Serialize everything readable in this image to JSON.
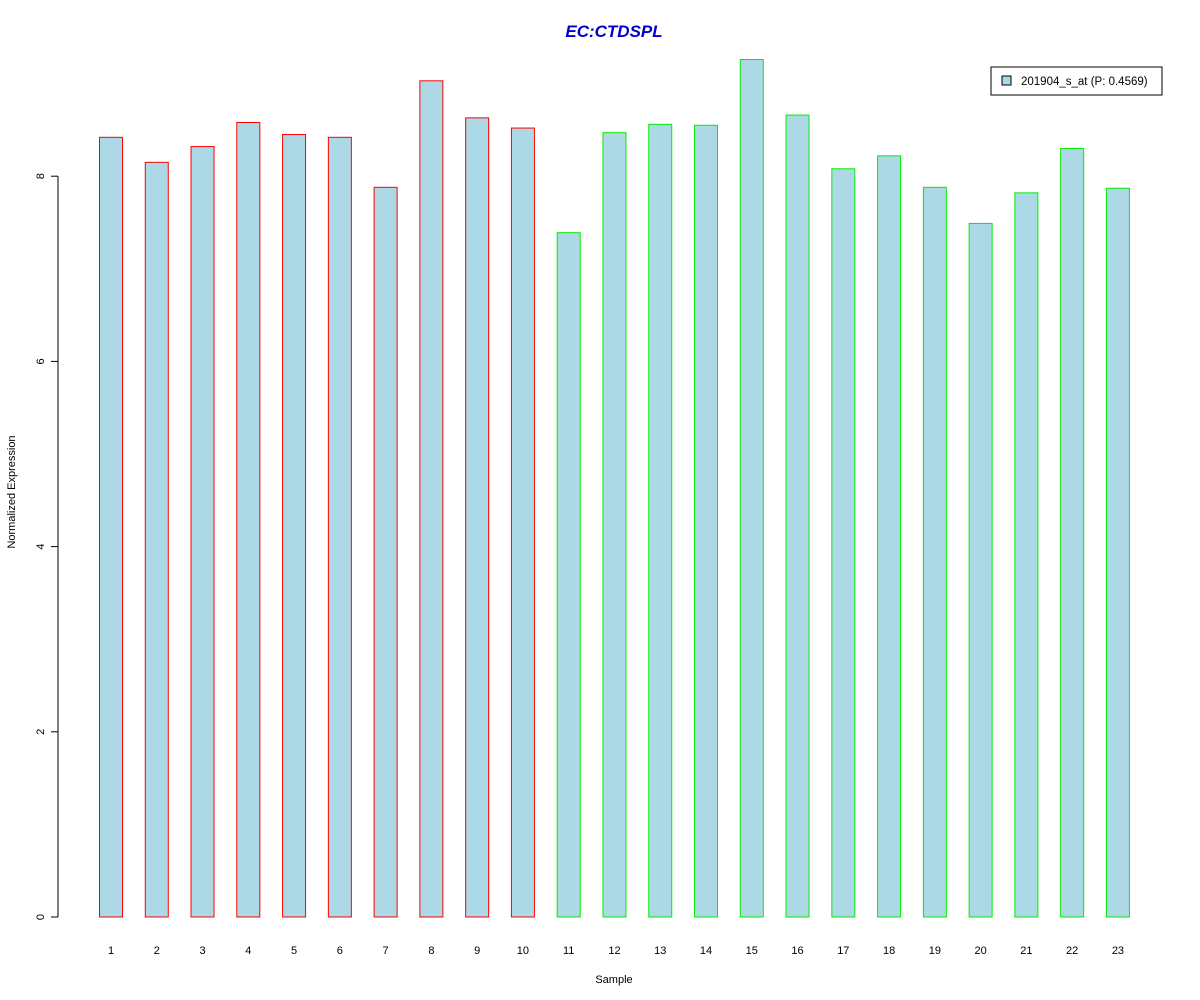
{
  "chart_data": {
    "type": "bar",
    "title": "EC:CTDSPL",
    "xlabel": "Sample",
    "ylabel": "Normalized Expression",
    "categories": [
      "1",
      "2",
      "3",
      "4",
      "5",
      "6",
      "7",
      "8",
      "9",
      "10",
      "11",
      "12",
      "13",
      "14",
      "15",
      "16",
      "17",
      "18",
      "19",
      "20",
      "21",
      "22",
      "23"
    ],
    "series": [
      {
        "name": "201904_s_at (P: 0.4569)",
        "values": [
          8.42,
          8.15,
          8.32,
          8.58,
          8.45,
          8.42,
          7.88,
          9.03,
          8.63,
          8.52,
          7.39,
          8.47,
          8.56,
          8.55,
          9.26,
          8.66,
          8.08,
          8.22,
          7.88,
          7.49,
          7.82,
          8.3,
          7.87
        ]
      }
    ],
    "groups": [
      {
        "samples": [
          1,
          2,
          3,
          4,
          5,
          6,
          7,
          8,
          9,
          10
        ],
        "border_color": "#ff0000"
      },
      {
        "samples": [
          11,
          12,
          13,
          14,
          15,
          16,
          17,
          18,
          19,
          20,
          21,
          22,
          23
        ],
        "border_color": "#00ee00"
      }
    ],
    "yticks": [
      0,
      2,
      4,
      6,
      8
    ],
    "ylim": [
      0,
      9.3
    ],
    "grid": false,
    "legend_position": "top-right",
    "colors": {
      "bar_fill": "#add8e6",
      "title": "#0000cc",
      "group1_border": "#ff0000",
      "group2_border": "#00ee00"
    }
  }
}
